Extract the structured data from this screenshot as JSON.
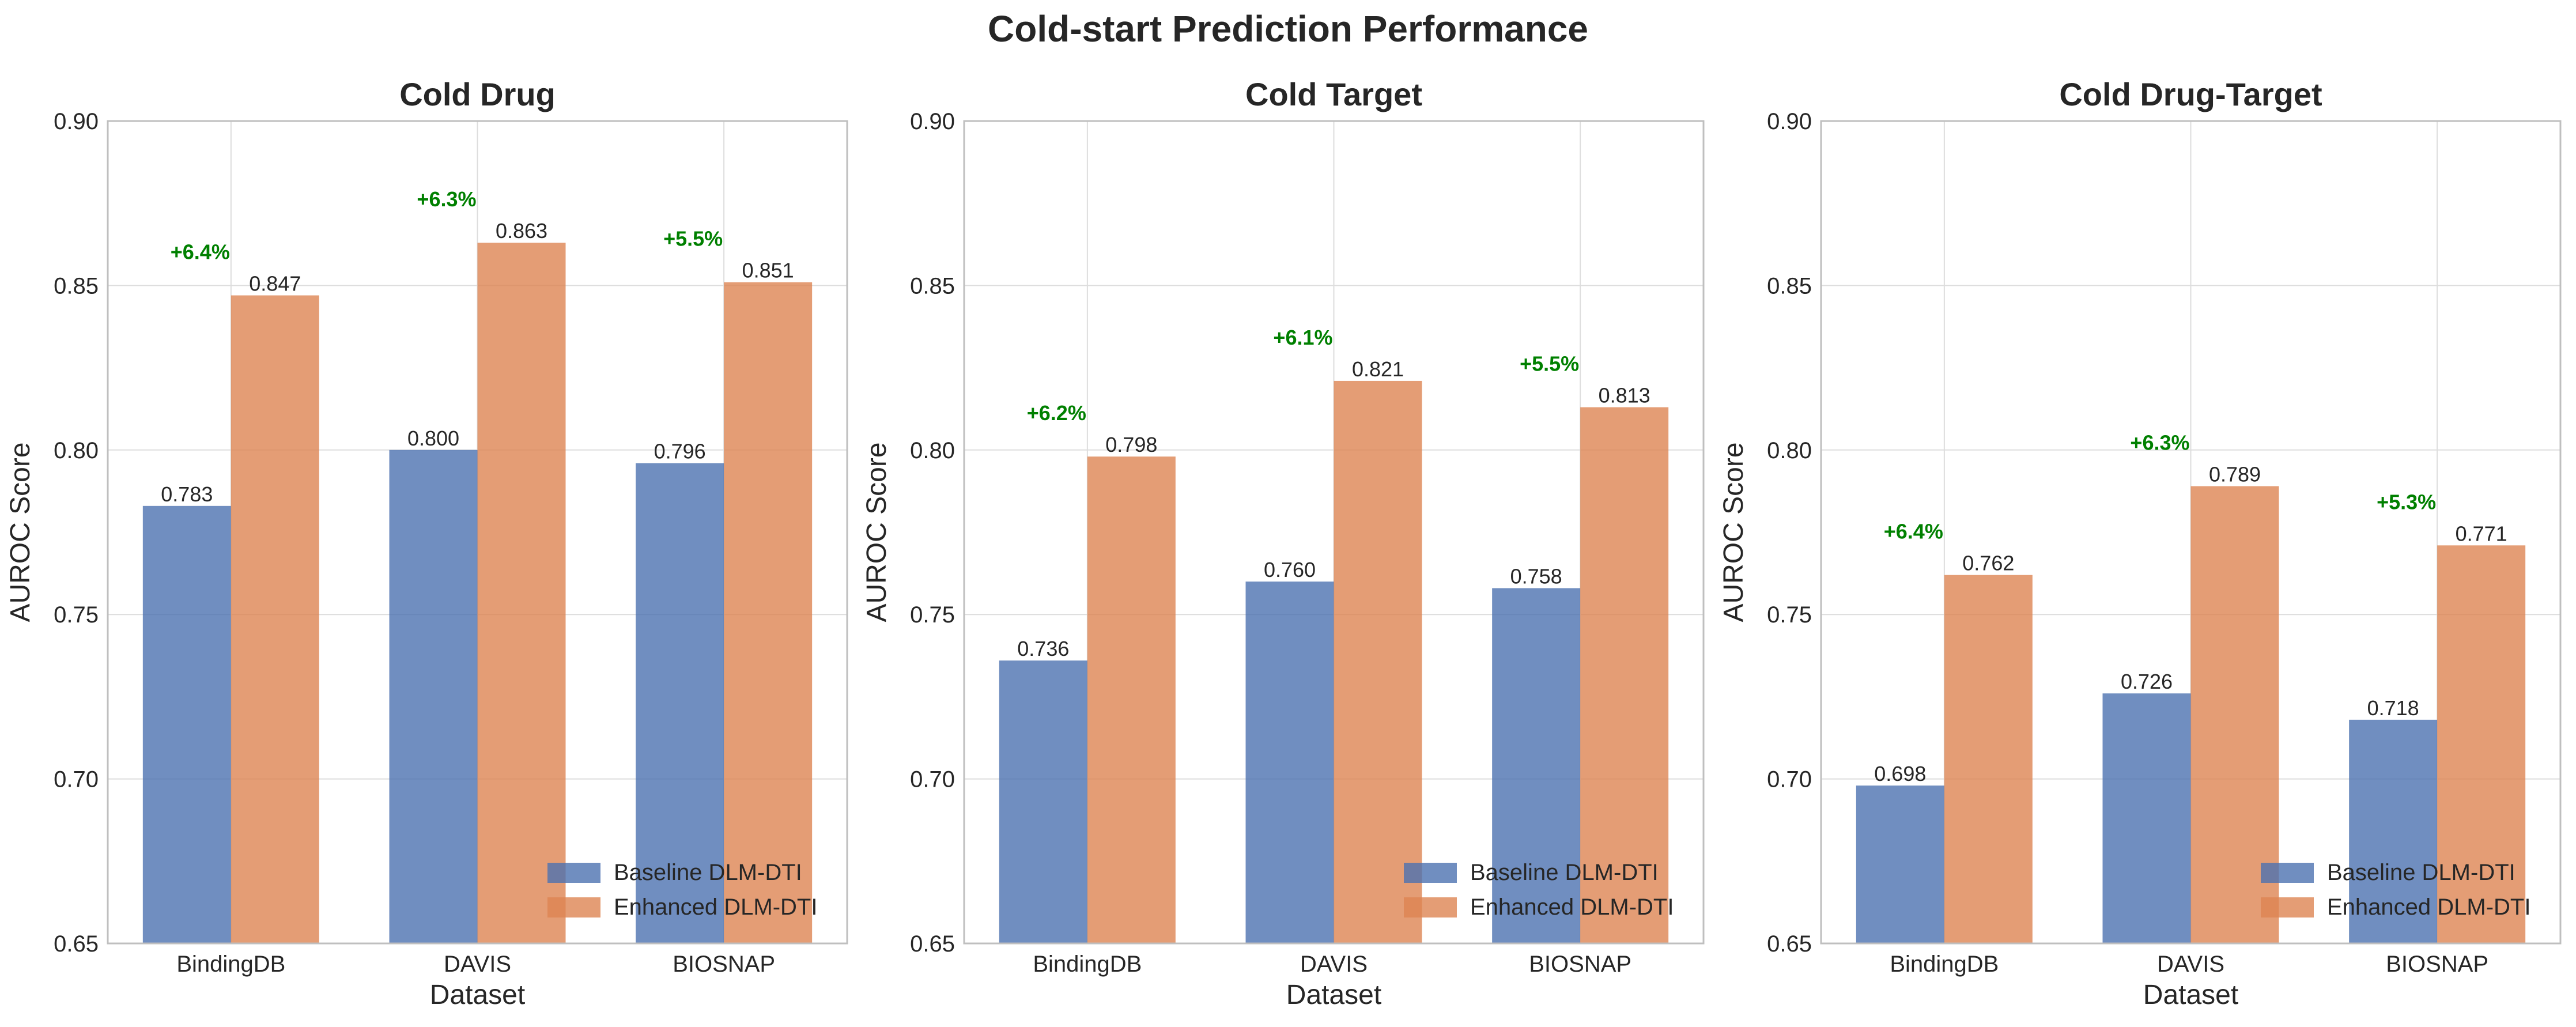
{
  "figure_title": "Cold-start Prediction Performance",
  "colors": {
    "baseline": "#4c72b0",
    "enhanced": "#dd8452",
    "improvement": "#008000",
    "grid": "#dddddd",
    "frame": "#bfbfbf"
  },
  "chart_data": [
    {
      "type": "bar",
      "title": "Cold Drug",
      "xlabel": "Dataset",
      "ylabel": "AUROC Score",
      "ylim": [
        0.65,
        0.9
      ],
      "yticks": [
        "0.65",
        "0.70",
        "0.75",
        "0.80",
        "0.85",
        "0.90"
      ],
      "categories": [
        "BindingDB",
        "DAVIS",
        "BIOSNAP"
      ],
      "grid": true,
      "legend": "bottom-right",
      "series": [
        {
          "name": "Baseline DLM-DTI",
          "values": [
            0.783,
            0.8,
            0.796
          ],
          "labels": [
            "0.783",
            "0.800",
            "0.796"
          ]
        },
        {
          "name": "Enhanced DLM-DTI",
          "values": [
            0.847,
            0.863,
            0.851
          ],
          "labels": [
            "0.847",
            "0.863",
            "0.851"
          ]
        }
      ],
      "annotations": [
        "+6.4%",
        "+6.3%",
        "+5.5%"
      ]
    },
    {
      "type": "bar",
      "title": "Cold Target",
      "xlabel": "Dataset",
      "ylabel": "AUROC Score",
      "ylim": [
        0.65,
        0.9
      ],
      "yticks": [
        "0.65",
        "0.70",
        "0.75",
        "0.80",
        "0.85",
        "0.90"
      ],
      "categories": [
        "BindingDB",
        "DAVIS",
        "BIOSNAP"
      ],
      "grid": true,
      "legend": "bottom-right",
      "series": [
        {
          "name": "Baseline DLM-DTI",
          "values": [
            0.736,
            0.76,
            0.758
          ],
          "labels": [
            "0.736",
            "0.760",
            "0.758"
          ]
        },
        {
          "name": "Enhanced DLM-DTI",
          "values": [
            0.798,
            0.821,
            0.813
          ],
          "labels": [
            "0.798",
            "0.821",
            "0.813"
          ]
        }
      ],
      "annotations": [
        "+6.2%",
        "+6.1%",
        "+5.5%"
      ]
    },
    {
      "type": "bar",
      "title": "Cold Drug-Target",
      "xlabel": "Dataset",
      "ylabel": "AUROC Score",
      "ylim": [
        0.65,
        0.9
      ],
      "yticks": [
        "0.65",
        "0.70",
        "0.75",
        "0.80",
        "0.85",
        "0.90"
      ],
      "categories": [
        "BindingDB",
        "DAVIS",
        "BIOSNAP"
      ],
      "grid": true,
      "legend": "bottom-right",
      "series": [
        {
          "name": "Baseline DLM-DTI",
          "values": [
            0.698,
            0.726,
            0.718
          ],
          "labels": [
            "0.698",
            "0.726",
            "0.718"
          ]
        },
        {
          "name": "Enhanced DLM-DTI",
          "values": [
            0.762,
            0.789,
            0.771
          ],
          "labels": [
            "0.762",
            "0.789",
            "0.771"
          ]
        }
      ],
      "annotations": [
        "+6.4%",
        "+6.3%",
        "+5.3%"
      ]
    }
  ]
}
